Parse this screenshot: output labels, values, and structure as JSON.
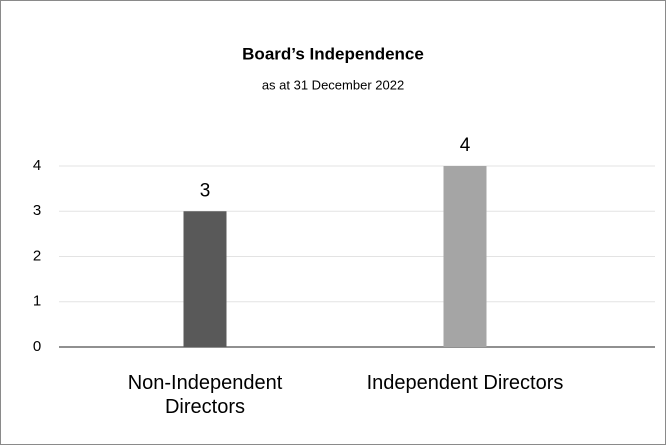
{
  "chart_data": {
    "type": "bar",
    "title": "Board’s Independence",
    "subtitle": "as at 31 December 2022",
    "categories": [
      "Non-Independent Directors",
      "Independent Directors"
    ],
    "values": [
      3,
      4
    ],
    "colors": [
      "#595959",
      "#a5a5a5"
    ],
    "ylim": [
      0,
      4
    ],
    "yticks": [
      0,
      1,
      2,
      3,
      4
    ],
    "grid": true
  }
}
